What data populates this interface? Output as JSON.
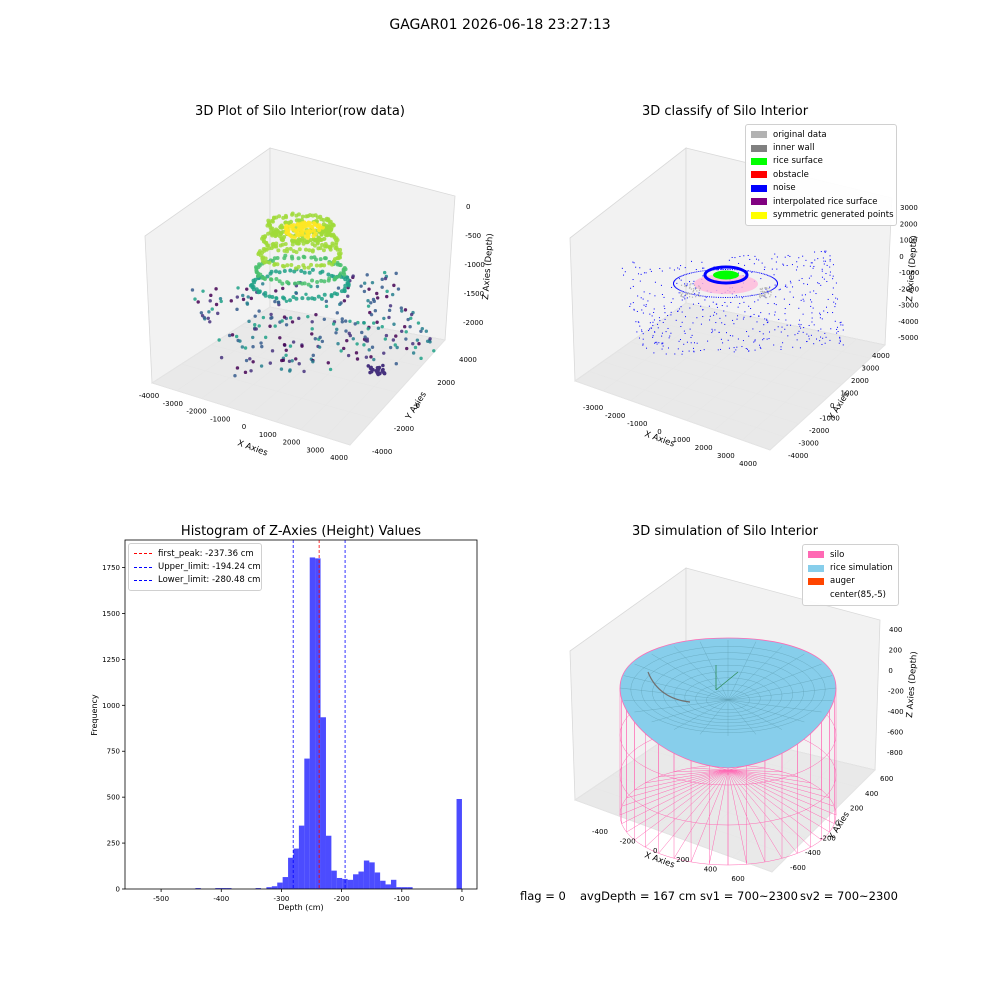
{
  "suptitle": "GAGAR01 2026-06-18 23:27:13",
  "footer": {
    "flag": "flag = 0",
    "avg": "avgDepth = 167 cm",
    "sv1": "sv1 = 700~2300",
    "sv2": "sv2 = 700~2300"
  },
  "chart_data": [
    {
      "type": "scatter",
      "projection": "3d",
      "title": "3D Plot of Silo Interior(row data)",
      "xlabel": "X Axies",
      "ylabel": "Y Axies",
      "zlabel": "Z Axies (Depth)",
      "x_ticks": [
        "-4000",
        "-3000",
        "-2000",
        "-1000",
        "0",
        "1000",
        "2000",
        "3000",
        "4000"
      ],
      "y_ticks": [
        "-4000",
        "-2000",
        "0",
        "2000",
        "4000"
      ],
      "z_ticks": [
        "0",
        "-500",
        "-1000",
        "-1500",
        "-2000"
      ],
      "colormap": "viridis"
    },
    {
      "type": "scatter",
      "projection": "3d",
      "title": "3D classify of Silo Interior",
      "xlabel": "X Axies",
      "ylabel": "Y Axies",
      "zlabel": "Z Axies (Depth)",
      "x_ticks": [
        "-3000",
        "-2000",
        "-1000",
        "0",
        "1000",
        "2000",
        "3000",
        "4000"
      ],
      "y_ticks": [
        "-4000",
        "-3000",
        "-2000",
        "-1000",
        "0",
        "1000",
        "2000",
        "3000",
        "4000"
      ],
      "z_ticks": [
        "3000",
        "2000",
        "1000",
        "0",
        "-1000",
        "-2000",
        "-3000",
        "-4000",
        "-5000"
      ],
      "legend": [
        {
          "name": "original data",
          "color": "#b2b2b2"
        },
        {
          "name": "inner wall",
          "color": "#808080"
        },
        {
          "name": "rice surface",
          "color": "#00ff00"
        },
        {
          "name": "obstacle",
          "color": "#ff0000"
        },
        {
          "name": "noise",
          "color": "#0000ff"
        },
        {
          "name": "interpolated rice surface",
          "color": "#800080"
        },
        {
          "name": "symmetric generated points",
          "color": "#ffff00"
        }
      ],
      "legend_position": "top-right"
    },
    {
      "type": "bar",
      "title": "Histogram of Z-Axies (Height) Values",
      "xlabel": "Depth (cm)",
      "ylabel": "Frequency",
      "xlim": [
        -560,
        25
      ],
      "ylim": [
        0,
        1900
      ],
      "x_ticks": [
        -500,
        -400,
        -300,
        -200,
        -100,
        0
      ],
      "y_ticks": [
        0,
        250,
        500,
        750,
        1000,
        1250,
        1500,
        1750
      ],
      "bar_color": "#0000ff",
      "bars": [
        {
          "x0": -443,
          "x1": -434,
          "y": 5
        },
        {
          "x0": -410,
          "x1": -401,
          "y": 5
        },
        {
          "x0": -401,
          "x1": -392,
          "y": 5
        },
        {
          "x0": -392,
          "x1": -383,
          "y": 5
        },
        {
          "x0": -343,
          "x1": -334,
          "y": 5
        },
        {
          "x0": -325,
          "x1": -316,
          "y": 10
        },
        {
          "x0": -316,
          "x1": -307,
          "y": 15
        },
        {
          "x0": -307,
          "x1": -298,
          "y": 35
        },
        {
          "x0": -298,
          "x1": -289,
          "y": 65
        },
        {
          "x0": -289,
          "x1": -280,
          "y": 170
        },
        {
          "x0": -280,
          "x1": -271,
          "y": 220
        },
        {
          "x0": -271,
          "x1": -262,
          "y": 345
        },
        {
          "x0": -262,
          "x1": -253,
          "y": 710
        },
        {
          "x0": -253,
          "x1": -244,
          "y": 1805
        },
        {
          "x0": -244,
          "x1": -235,
          "y": 1800
        },
        {
          "x0": -235,
          "x1": -226,
          "y": 935
        },
        {
          "x0": -226,
          "x1": -217,
          "y": 290
        },
        {
          "x0": -217,
          "x1": -208,
          "y": 100
        },
        {
          "x0": -208,
          "x1": -199,
          "y": 60
        },
        {
          "x0": -199,
          "x1": -190,
          "y": 55
        },
        {
          "x0": -190,
          "x1": -181,
          "y": 50
        },
        {
          "x0": -181,
          "x1": -172,
          "y": 80
        },
        {
          "x0": -172,
          "x1": -163,
          "y": 95
        },
        {
          "x0": -163,
          "x1": -154,
          "y": 155
        },
        {
          "x0": -154,
          "x1": -145,
          "y": 145
        },
        {
          "x0": -145,
          "x1": -136,
          "y": 90
        },
        {
          "x0": -136,
          "x1": -127,
          "y": 45
        },
        {
          "x0": -127,
          "x1": -118,
          "y": 25
        },
        {
          "x0": -118,
          "x1": -109,
          "y": 50
        },
        {
          "x0": -109,
          "x1": -100,
          "y": 10
        },
        {
          "x0": -100,
          "x1": -91,
          "y": 10
        },
        {
          "x0": -91,
          "x1": -82,
          "y": 10
        },
        {
          "x0": -9,
          "x1": 0,
          "y": 490
        }
      ],
      "vlines": [
        {
          "name": "first_peak: -237.36 cm",
          "x": -237.36,
          "color": "#ff0000"
        },
        {
          "name": "Upper_limit: -194.24 cm",
          "x": -194.24,
          "color": "#0000ff"
        },
        {
          "name": "Lower_limit: -280.48 cm",
          "x": -280.48,
          "color": "#0000ff"
        }
      ],
      "legend_position": "top-left"
    },
    {
      "type": "surface",
      "projection": "3d",
      "title": "3D simulation of Silo Interior",
      "xlabel": "X Axies",
      "ylabel": "Y Axies",
      "zlabel": "Z Axies (Depth)",
      "x_ticks": [
        "-400",
        "-200",
        "0",
        "200",
        "400",
        "600"
      ],
      "y_ticks": [
        "-600",
        "-400",
        "-200",
        "0",
        "200",
        "400",
        "600"
      ],
      "z_ticks": [
        "400",
        "200",
        "0",
        "-200",
        "-400",
        "-600",
        "-800"
      ],
      "legend": [
        {
          "name": "silo",
          "color": "#ff69b4"
        },
        {
          "name": "rice simulation",
          "color": "#87ceeb"
        },
        {
          "name": "auger",
          "color": "#ff4500"
        },
        {
          "name": "center(85,-5)",
          "color": "#ffffff"
        }
      ],
      "legend_position": "top-right"
    }
  ]
}
